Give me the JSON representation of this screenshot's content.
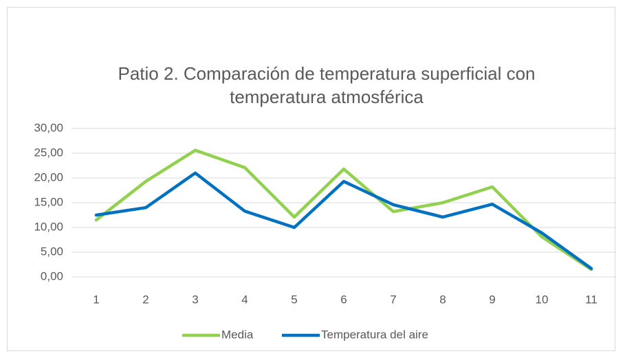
{
  "chart_data": {
    "type": "line",
    "title": "Patio 2. Comparación de temperatura superficial con temperatura atmosférica",
    "categories": [
      "1",
      "2",
      "3",
      "4",
      "5",
      "6",
      "7",
      "8",
      "9",
      "10",
      "11"
    ],
    "series": [
      {
        "name": "Media",
        "color": "#92d050",
        "values": [
          11.5,
          19.3,
          25.6,
          22.1,
          12.1,
          21.8,
          13.2,
          15.0,
          18.2,
          8.1,
          1.5
        ]
      },
      {
        "name": "Temperatura del aire",
        "color": "#0070c0",
        "values": [
          12.5,
          14.0,
          21.0,
          13.3,
          10.0,
          19.3,
          14.6,
          12.1,
          14.7,
          8.9,
          1.7
        ]
      }
    ],
    "ylim": [
      0,
      30
    ],
    "yticks": [
      {
        "value": 0,
        "label": "0,00"
      },
      {
        "value": 5,
        "label": "5,00"
      },
      {
        "value": 10,
        "label": "10,00"
      },
      {
        "value": 15,
        "label": "15,00"
      },
      {
        "value": 20,
        "label": "20,00"
      },
      {
        "value": 25,
        "label": "25,00"
      },
      {
        "value": 30,
        "label": "30,00"
      }
    ],
    "grid": true,
    "legend": "bottom"
  }
}
